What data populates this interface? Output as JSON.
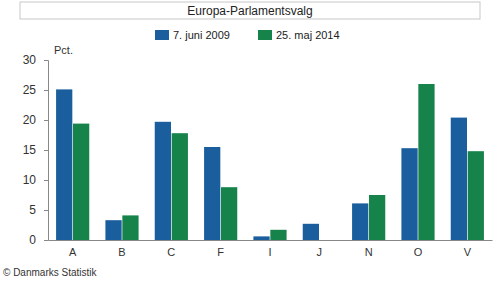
{
  "chart_data": {
    "type": "bar",
    "title": "Europa-Parlamentsvalg",
    "ylabel": "Pct.",
    "source": "© Danmarks Statistik",
    "categories": [
      "A",
      "B",
      "C",
      "F",
      "I",
      "J",
      "N",
      "O",
      "V"
    ],
    "series": [
      {
        "name": "7. juni 2009",
        "color": "#1a5e9e",
        "values": [
          25.1,
          3.3,
          19.7,
          15.5,
          0.6,
          2.7,
          6.1,
          15.3,
          20.4
        ]
      },
      {
        "name": "25. maj 2014",
        "color": "#15834a",
        "values": [
          19.4,
          4.1,
          17.8,
          8.8,
          1.7,
          null,
          7.5,
          26.0,
          14.8
        ]
      }
    ],
    "ylim": [
      0,
      30
    ],
    "yticks": [
      0,
      5,
      10,
      15,
      20,
      25,
      30
    ],
    "grid": false,
    "legend": "top"
  }
}
